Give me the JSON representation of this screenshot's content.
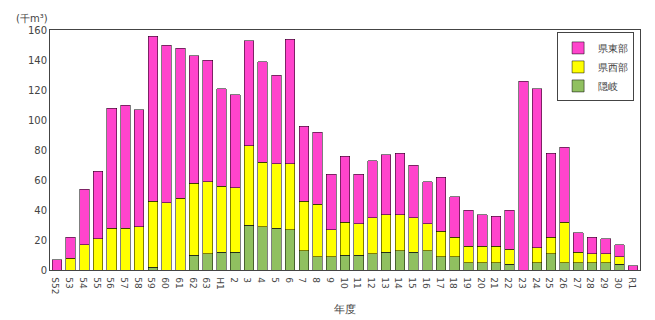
{
  "chart_data": {
    "type": "bar",
    "stacked": true,
    "xlabel": "年度",
    "ylabel": "(千m³)",
    "categories": [
      "S52",
      "53",
      "54",
      "55",
      "56",
      "57",
      "58",
      "59",
      "60",
      "61",
      "62",
      "63",
      "H1",
      "2",
      "3",
      "4",
      "5",
      "6",
      "7",
      "8",
      "9",
      "10",
      "11",
      "12",
      "13",
      "14",
      "15",
      "16",
      "17",
      "18",
      "19",
      "20",
      "21",
      "22",
      "23",
      "24",
      "25",
      "26",
      "27",
      "28",
      "29",
      "30",
      "R1"
    ],
    "series": [
      {
        "name": "隠岐",
        "color": "#90C060",
        "values": [
          0,
          0,
          0,
          0,
          0,
          0,
          0,
          2,
          0,
          0,
          10,
          11,
          12,
          12,
          30,
          29,
          28,
          27,
          13,
          9,
          9,
          10,
          10,
          11,
          12,
          13,
          12,
          13,
          9,
          9,
          5,
          5,
          5,
          4,
          0,
          5,
          11,
          5,
          5,
          5,
          5,
          4,
          0
        ]
      },
      {
        "name": "県西部",
        "color": "#FFFF00",
        "values": [
          0,
          8,
          17,
          21,
          28,
          28,
          29,
          44,
          45,
          48,
          48,
          48,
          44,
          43,
          53,
          43,
          43,
          44,
          33,
          35,
          18,
          22,
          21,
          24,
          25,
          24,
          23,
          18,
          17,
          13,
          11,
          11,
          11,
          10,
          0,
          10,
          11,
          27,
          7,
          6,
          6,
          5,
          0
        ]
      },
      {
        "name": "県東部",
        "color": "#FF44CC",
        "values": [
          7,
          14,
          37,
          45,
          80,
          82,
          78,
          110,
          105,
          100,
          85,
          81,
          65,
          62,
          70,
          67,
          59,
          83,
          50,
          48,
          37,
          44,
          33,
          38,
          40,
          41,
          35,
          28,
          36,
          27,
          24,
          21,
          20,
          26,
          126,
          106,
          56,
          50,
          13,
          11,
          10,
          8,
          3
        ]
      }
    ],
    "ylim": [
      0,
      160
    ],
    "yticks": [
      0,
      20,
      40,
      60,
      80,
      100,
      120,
      140,
      160
    ],
    "grid": false,
    "legend": "upper right"
  }
}
